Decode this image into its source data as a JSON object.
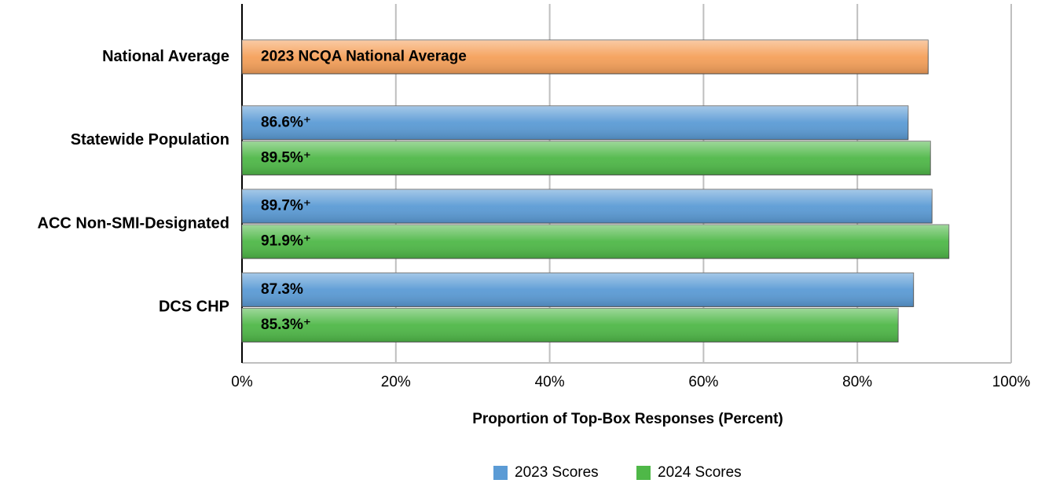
{
  "chart_data": {
    "type": "barh",
    "x_label": "Proportion of Top-Box Responses (Percent)",
    "categories": [
      "National Average",
      "Statewide Population",
      "ACC Non-SMI-Designated",
      "DCS CHP"
    ],
    "reference": {
      "label": "2023 NCQA National Average",
      "value": 89.2,
      "color": "#f5a05a"
    },
    "series": [
      {
        "name": "2023 Scores",
        "color": "#5b9bd5",
        "values": [
          null,
          86.6,
          89.7,
          87.3
        ],
        "value_labels": [
          null,
          "86.6%⁺",
          "89.7%⁺",
          "87.3%"
        ]
      },
      {
        "name": "2024 Scores",
        "color": "#4fb848",
        "values": [
          null,
          89.5,
          91.9,
          85.3
        ],
        "value_labels": [
          null,
          "89.5%⁺",
          "91.9%⁺",
          "85.3%⁺"
        ]
      }
    ],
    "xlim": [
      0,
      100
    ],
    "xticks": [
      {
        "value": 0,
        "label": "0%"
      },
      {
        "value": 20,
        "label": "20%"
      },
      {
        "value": 40,
        "label": "40%"
      },
      {
        "value": 60,
        "label": "60%"
      },
      {
        "value": 80,
        "label": "80%"
      },
      {
        "value": 100,
        "label": "100%"
      }
    ],
    "grid": true
  }
}
